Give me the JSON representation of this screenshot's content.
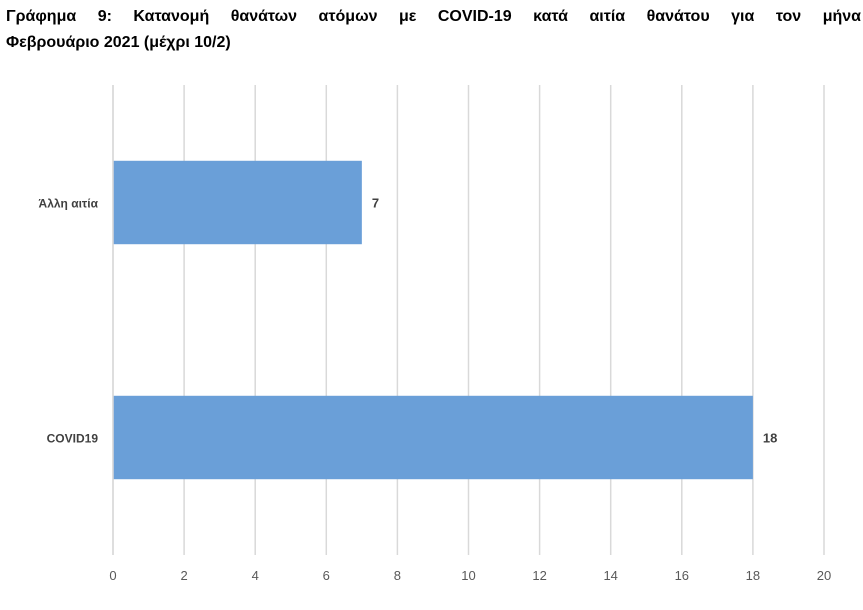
{
  "title_line1": "Γράφημα 9: Κατανομή θανάτων ατόμων με COVID-19 κατά αιτία θανάτου για τον μήνα",
  "title_line2": "Φεβρουάριο 2021 (μέχρι 10/2)",
  "chart_data": {
    "type": "bar",
    "orientation": "horizontal",
    "title": "Γράφημα 9: Κατανομή θανάτων ατόμων με COVID-19 κατά αιτία θανάτου για τον μήνα Φεβρουάριο 2021 (μέχρι 10/2)",
    "categories": [
      "Άλλη αιτία",
      "COVID19"
    ],
    "values": [
      7,
      18
    ],
    "xlim": [
      0,
      20
    ],
    "xticks": [
      0,
      2,
      4,
      6,
      8,
      10,
      12,
      14,
      16,
      18,
      20
    ],
    "grid": "vertical",
    "legend": "none",
    "data_labels": true,
    "bar_color": "#6a9fd8",
    "grid_color": "#d9d9d9",
    "tick_label_color": "#595959",
    "category_label_color": "#404040"
  }
}
